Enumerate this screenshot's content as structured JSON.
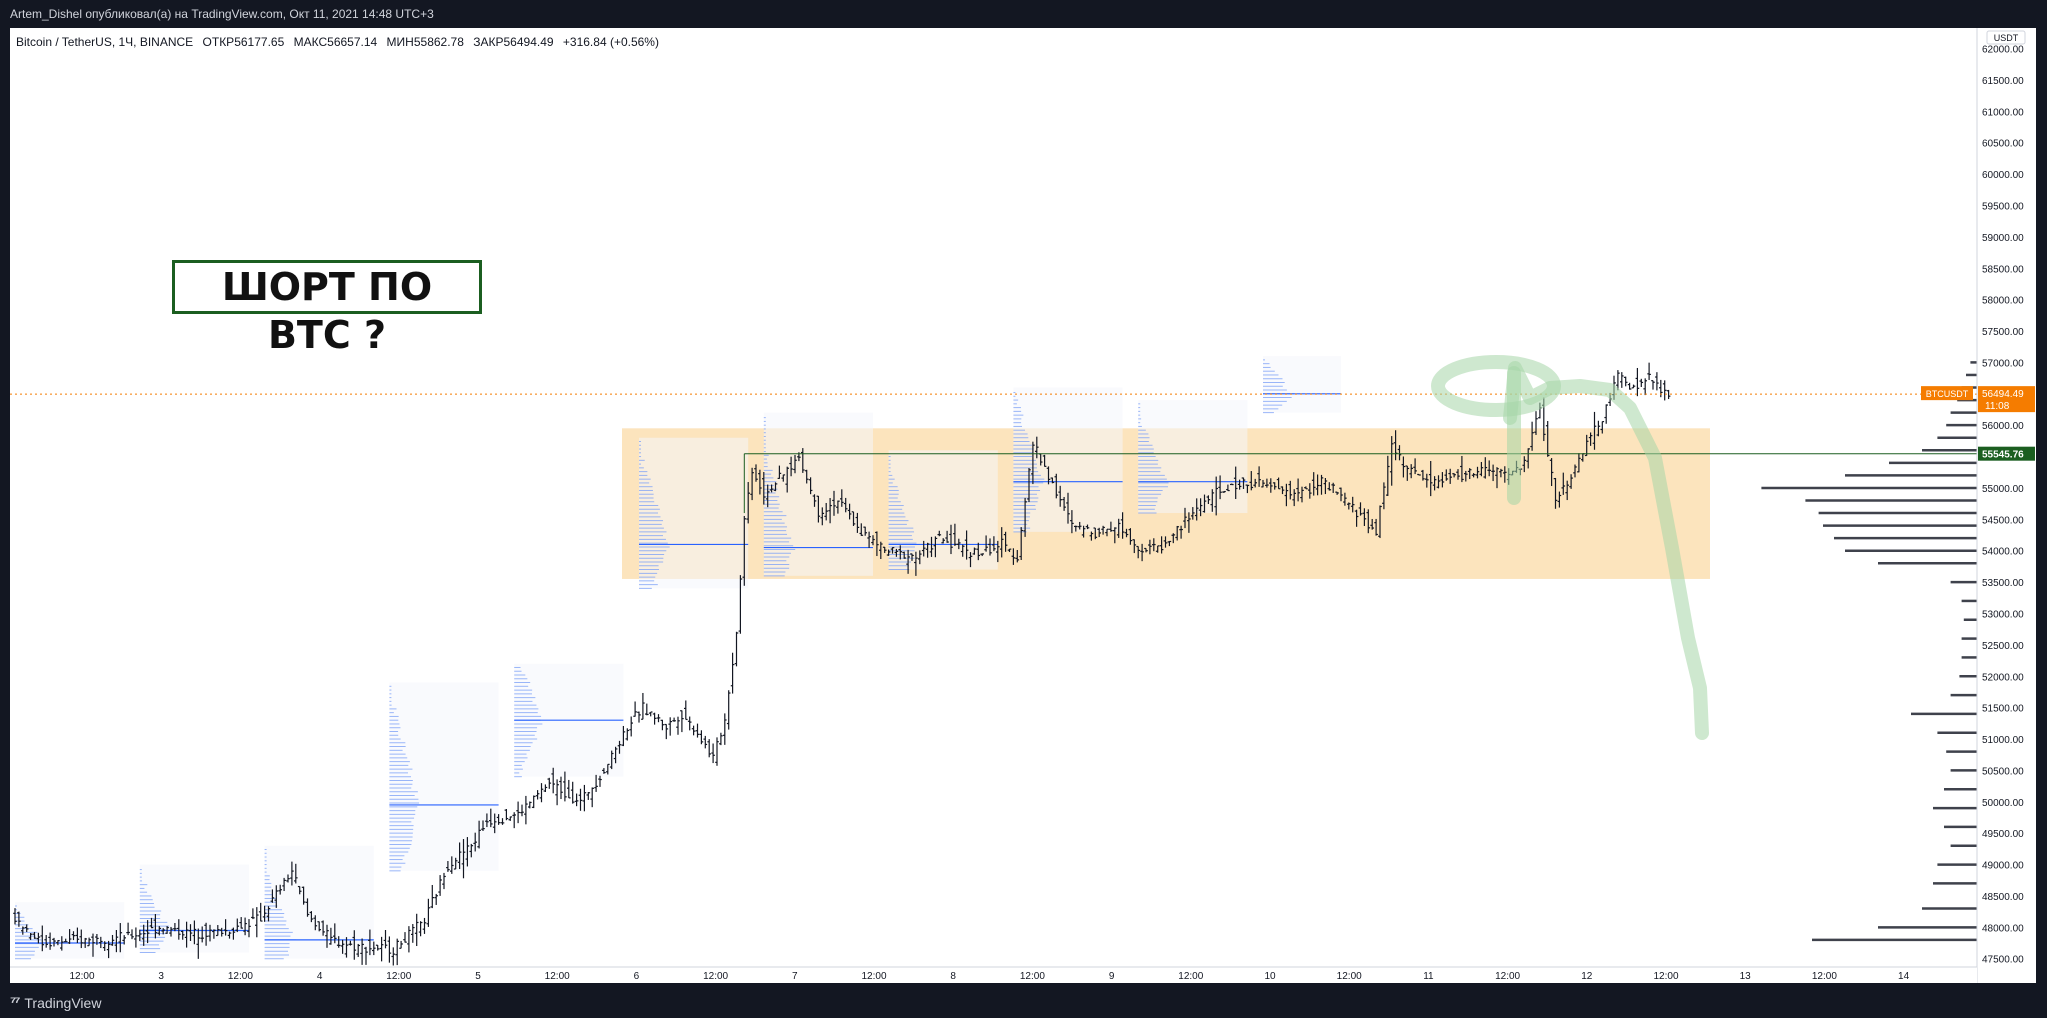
{
  "header": {
    "publisher_line": "Artem_Dishel опубликовал(а) на TradingView.com, Окт 11, 2021 14:48 UTC+3"
  },
  "legend": {
    "symbol": "Bitcoin / TetherUS, 1Ч, BINANCE",
    "open_label": "ОТКР",
    "open": "56177.65",
    "high_label": "МАКС",
    "high": "56657.14",
    "low_label": "МИН",
    "low": "55862.78",
    "close_label": "ЗАКР",
    "close": "56494.49",
    "change": "+316.84 (+0.56%)"
  },
  "annotation": {
    "text": "ШОРТ ПО BTC ?"
  },
  "footer": {
    "brand": "TradingView"
  },
  "colors": {
    "background": "#ffffff",
    "frame": "#131722",
    "range_zone": "#fbdfb1",
    "projection": "#a5d6a7",
    "profile_blue": "#7a9ff7",
    "last_price": "#f57c00",
    "level_line": "#1b5e20",
    "candle": "#131722"
  },
  "chart_data": {
    "type": "bar",
    "style": "ohlc-bars",
    "currency": "USDT",
    "symbol_tag": "BTCUSDT",
    "last_price": 56494.49,
    "last_price_label": "56494.49",
    "countdown": "11:08",
    "level_price": 55545.76,
    "level_label": "55545.76",
    "ylim": [
      47400,
      62200
    ],
    "y_ticks": [
      "47500.00",
      "48000.00",
      "48500.00",
      "49000.00",
      "49500.00",
      "50000.00",
      "50500.00",
      "51000.00",
      "51500.00",
      "52000.00",
      "52500.00",
      "53000.00",
      "53500.00",
      "54000.00",
      "54500.00",
      "55000.00",
      "55500.00",
      "56000.00",
      "56500.00",
      "57000.00",
      "57500.00",
      "58000.00",
      "58500.00",
      "59000.00",
      "59500.00",
      "60000.00",
      "60500.00",
      "61000.00",
      "61500.00",
      "62000.00"
    ],
    "x_ticks": [
      "12:00",
      "3",
      "12:00",
      "4",
      "12:00",
      "5",
      "12:00",
      "6",
      "12:00",
      "7",
      "12:00",
      "8",
      "12:00",
      "9",
      "12:00",
      "10",
      "12:00",
      "11",
      "12:00",
      "12",
      "12:00",
      "13",
      "12:00",
      "14"
    ],
    "range_zone": {
      "low": 53550,
      "high": 55950,
      "from": "Oct 6 ~02:00",
      "to": "Oct 12 ~22:00"
    },
    "anchors": [
      {
        "t": 0,
        "p": 48200
      },
      {
        "t": 8,
        "p": 47750
      },
      {
        "t": 20,
        "p": 47800
      },
      {
        "t": 30,
        "p": 47850
      },
      {
        "t": 38,
        "p": 48000
      },
      {
        "t": 46,
        "p": 47900
      },
      {
        "t": 56,
        "p": 47950
      },
      {
        "t": 64,
        "p": 48150
      },
      {
        "t": 72,
        "p": 48900
      },
      {
        "t": 76,
        "p": 48200
      },
      {
        "t": 82,
        "p": 47800
      },
      {
        "t": 88,
        "p": 47700
      },
      {
        "t": 98,
        "p": 47650
      },
      {
        "t": 106,
        "p": 48100
      },
      {
        "t": 112,
        "p": 49000
      },
      {
        "t": 118,
        "p": 49300
      },
      {
        "t": 122,
        "p": 49700
      },
      {
        "t": 130,
        "p": 49800
      },
      {
        "t": 138,
        "p": 50300
      },
      {
        "t": 146,
        "p": 50000
      },
      {
        "t": 152,
        "p": 50500
      },
      {
        "t": 158,
        "p": 51200
      },
      {
        "t": 162,
        "p": 51500
      },
      {
        "t": 168,
        "p": 51200
      },
      {
        "t": 172,
        "p": 51400
      },
      {
        "t": 176,
        "p": 51100
      },
      {
        "t": 180,
        "p": 50700
      },
      {
        "t": 183,
        "p": 51300
      },
      {
        "t": 186,
        "p": 52700
      },
      {
        "t": 188,
        "p": 54500
      },
      {
        "t": 190,
        "p": 55300
      },
      {
        "t": 193,
        "p": 54900
      },
      {
        "t": 198,
        "p": 55200
      },
      {
        "t": 202,
        "p": 55500
      },
      {
        "t": 207,
        "p": 54600
      },
      {
        "t": 212,
        "p": 54800
      },
      {
        "t": 218,
        "p": 54300
      },
      {
        "t": 224,
        "p": 54000
      },
      {
        "t": 232,
        "p": 53900
      },
      {
        "t": 238,
        "p": 54200
      },
      {
        "t": 242,
        "p": 54100
      },
      {
        "t": 248,
        "p": 53950
      },
      {
        "t": 254,
        "p": 54100
      },
      {
        "t": 258,
        "p": 53900
      },
      {
        "t": 262,
        "p": 55700
      },
      {
        "t": 266,
        "p": 55200
      },
      {
        "t": 272,
        "p": 54400
      },
      {
        "t": 278,
        "p": 54300
      },
      {
        "t": 284,
        "p": 54400
      },
      {
        "t": 290,
        "p": 54000
      },
      {
        "t": 296,
        "p": 54100
      },
      {
        "t": 300,
        "p": 54400
      },
      {
        "t": 306,
        "p": 54800
      },
      {
        "t": 312,
        "p": 55000
      },
      {
        "t": 318,
        "p": 55100
      },
      {
        "t": 324,
        "p": 55000
      },
      {
        "t": 330,
        "p": 54900
      },
      {
        "t": 336,
        "p": 55100
      },
      {
        "t": 342,
        "p": 54800
      },
      {
        "t": 350,
        "p": 54300
      },
      {
        "t": 354,
        "p": 55700
      },
      {
        "t": 358,
        "p": 55300
      },
      {
        "t": 364,
        "p": 55100
      },
      {
        "t": 372,
        "p": 55200
      },
      {
        "t": 378,
        "p": 55300
      },
      {
        "t": 384,
        "p": 55200
      },
      {
        "t": 388,
        "p": 55400
      },
      {
        "t": 392,
        "p": 56300
      },
      {
        "t": 396,
        "p": 54800
      },
      {
        "t": 400,
        "p": 55200
      },
      {
        "t": 404,
        "p": 55700
      },
      {
        "t": 408,
        "p": 56100
      },
      {
        "t": 412,
        "p": 56800
      },
      {
        "t": 416,
        "p": 56600
      },
      {
        "t": 420,
        "p": 56750
      },
      {
        "t": 424,
        "p": 56500
      }
    ],
    "volume_profile": [
      {
        "p": 47800,
        "v": 0.75
      },
      {
        "p": 48000,
        "v": 0.45
      },
      {
        "p": 48300,
        "v": 0.25
      },
      {
        "p": 48700,
        "v": 0.2
      },
      {
        "p": 49000,
        "v": 0.18
      },
      {
        "p": 49300,
        "v": 0.12
      },
      {
        "p": 49600,
        "v": 0.15
      },
      {
        "p": 49900,
        "v": 0.2
      },
      {
        "p": 50200,
        "v": 0.15
      },
      {
        "p": 50500,
        "v": 0.12
      },
      {
        "p": 50800,
        "v": 0.14
      },
      {
        "p": 51100,
        "v": 0.18
      },
      {
        "p": 51400,
        "v": 0.3
      },
      {
        "p": 51700,
        "v": 0.12
      },
      {
        "p": 52000,
        "v": 0.08
      },
      {
        "p": 52300,
        "v": 0.07
      },
      {
        "p": 52600,
        "v": 0.07
      },
      {
        "p": 52900,
        "v": 0.06
      },
      {
        "p": 53200,
        "v": 0.07
      },
      {
        "p": 53500,
        "v": 0.12
      },
      {
        "p": 53800,
        "v": 0.45
      },
      {
        "p": 54000,
        "v": 0.6
      },
      {
        "p": 54200,
        "v": 0.65
      },
      {
        "p": 54400,
        "v": 0.7
      },
      {
        "p": 54600,
        "v": 0.72
      },
      {
        "p": 54800,
        "v": 0.78
      },
      {
        "p": 55000,
        "v": 0.98
      },
      {
        "p": 55200,
        "v": 0.6
      },
      {
        "p": 55400,
        "v": 0.4
      },
      {
        "p": 55600,
        "v": 0.25
      },
      {
        "p": 55800,
        "v": 0.18
      },
      {
        "p": 56000,
        "v": 0.14
      },
      {
        "p": 56200,
        "v": 0.12
      },
      {
        "p": 56400,
        "v": 0.09
      },
      {
        "p": 56600,
        "v": 0.07
      },
      {
        "p": 56800,
        "v": 0.05
      },
      {
        "p": 57000,
        "v": 0.03
      }
    ]
  }
}
